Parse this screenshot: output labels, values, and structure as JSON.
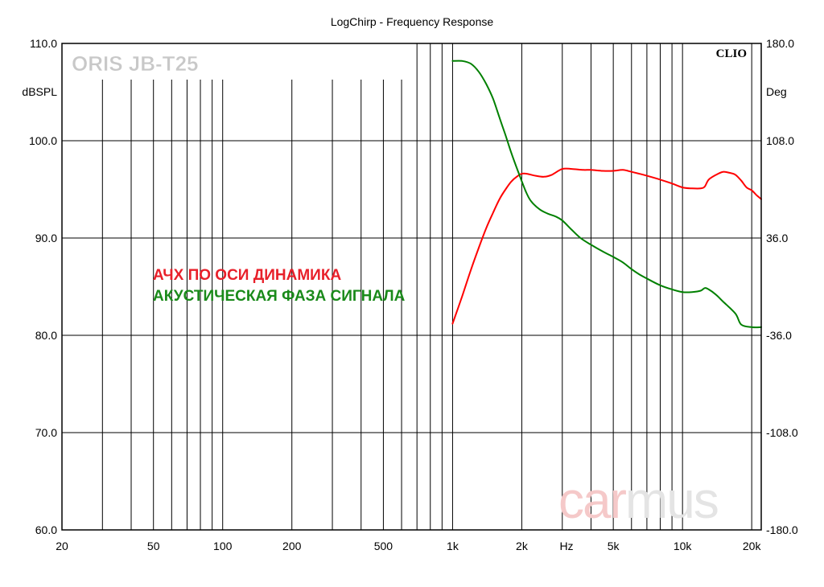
{
  "chart_data": {
    "type": "line",
    "title": "LogChirp - Frequency Response",
    "brand": "ORIS JB-T25",
    "software_label": "CLIO",
    "watermark": {
      "part1": "car",
      "part2": "mus",
      "color1": "#f5c9c9",
      "color2": "#e4e4e4"
    },
    "xlabel": "Hz",
    "ylabel_left": "dBSPL",
    "ylabel_right": "Deg",
    "x_scale": "log",
    "xlim": [
      20,
      22000
    ],
    "ylim_left": [
      60,
      110
    ],
    "ylim_right": [
      -180,
      180
    ],
    "x_ticks": [
      20,
      50,
      100,
      200,
      500,
      1000,
      2000,
      5000,
      10000,
      20000
    ],
    "x_tick_labels": [
      "20",
      "50",
      "100",
      "200",
      "500",
      "1k",
      "2k",
      "5k",
      "10k",
      "20k"
    ],
    "y_ticks_left": [
      110,
      100,
      90,
      80,
      70,
      60
    ],
    "y_tick_labels_left": [
      "110.0",
      "100.0",
      "90.0",
      "80.0",
      "70.0",
      "60.0"
    ],
    "y_ticks_right": [
      180,
      108,
      36,
      -36,
      -108,
      -180
    ],
    "y_tick_labels_right": [
      "180.0",
      "108.0",
      "36.0",
      "-36.0",
      "-108.0",
      "-180.0"
    ],
    "grid": true,
    "annotations": [
      {
        "text": "АЧХ ПО ОСИ ДИНАМИКА",
        "color": "#e8202a"
      },
      {
        "text": "АКУСТИЧЕСКАЯ ФАЗА СИГНАЛА",
        "color": "#1a8a1a"
      }
    ],
    "series": [
      {
        "color": "#ff0000",
        "axis": "left",
        "x": [
          1000,
          1100,
          1200,
          1300,
          1400,
          1500,
          1600,
          1700,
          1800,
          1900,
          2000,
          2100,
          2300,
          2500,
          2700,
          3000,
          3300,
          3700,
          4000,
          4500,
          5000,
          5500,
          6000,
          6500,
          7000,
          8000,
          9000,
          10000,
          11000,
          12000,
          12500,
          13000,
          14000,
          15000,
          16000,
          17000,
          18000,
          19000,
          20000,
          21000,
          22000
        ],
        "values": [
          81.2,
          84.0,
          86.7,
          89.0,
          91.0,
          92.6,
          94.0,
          95.0,
          95.8,
          96.3,
          96.6,
          96.6,
          96.4,
          96.3,
          96.5,
          97.1,
          97.1,
          97.0,
          97.0,
          96.9,
          96.9,
          97.0,
          96.8,
          96.6,
          96.4,
          96.0,
          95.6,
          95.2,
          95.1,
          95.1,
          95.3,
          96.0,
          96.5,
          96.8,
          96.7,
          96.5,
          95.9,
          95.2,
          94.9,
          94.4,
          94.0
        ]
      },
      {
        "color": "#008000",
        "axis": "right",
        "x": [
          1000,
          1100,
          1200,
          1300,
          1400,
          1500,
          1600,
          1700,
          1800,
          1900,
          2000,
          2100,
          2200,
          2400,
          2600,
          2800,
          3000,
          3300,
          3600,
          4000,
          4500,
          5000,
          5500,
          6000,
          6500,
          7000,
          8000,
          9000,
          10000,
          11000,
          12000,
          12500,
          13000,
          14000,
          15000,
          17000,
          18000,
          20000,
          22000
        ],
        "values": [
          167,
          167,
          165,
          159,
          150,
          139,
          125,
          112,
          99,
          88,
          78,
          69,
          63,
          57,
          54,
          52,
          49,
          42,
          36,
          31,
          26,
          22,
          18,
          13,
          9,
          6,
          1,
          -2,
          -4,
          -4,
          -3,
          -1,
          -2,
          -6,
          -11,
          -20,
          -28,
          -30,
          -30
        ]
      }
    ]
  }
}
